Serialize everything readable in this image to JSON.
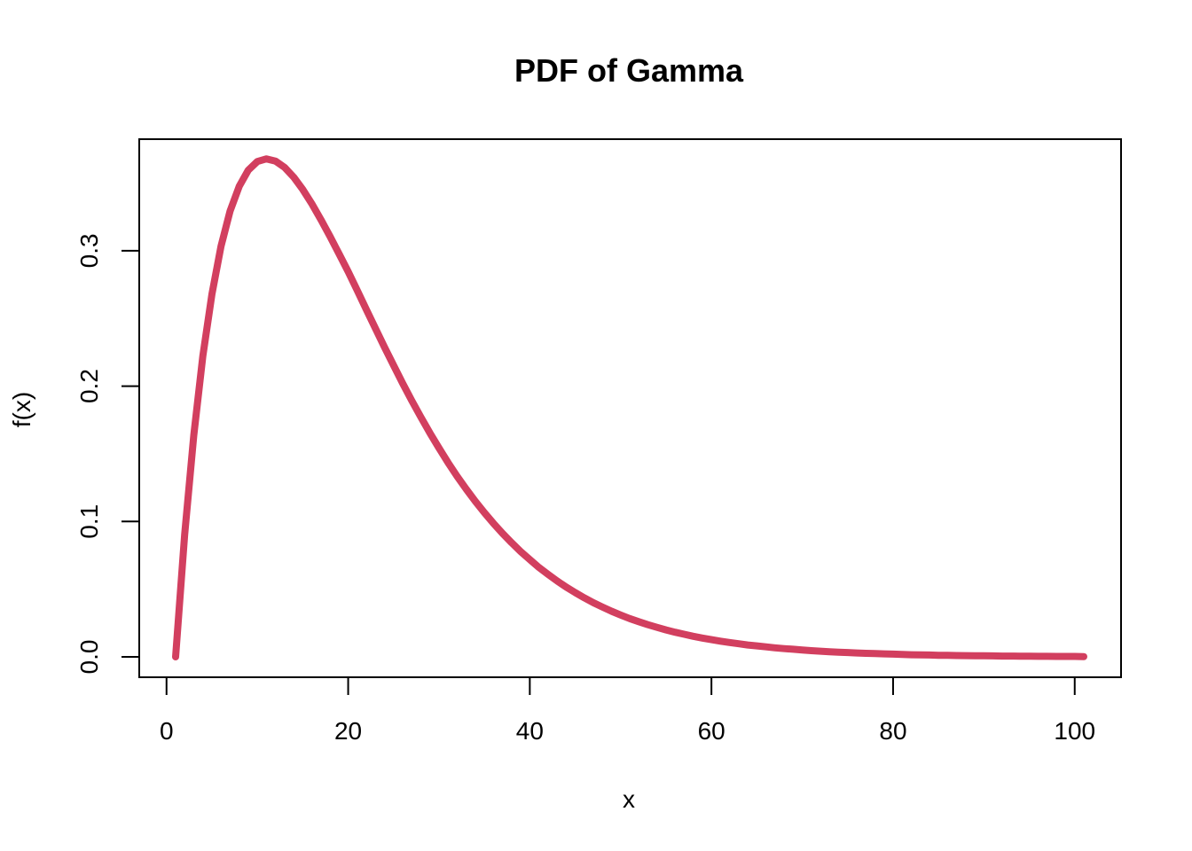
{
  "chart_data": {
    "type": "line",
    "title": "PDF of Gamma",
    "xlabel": "x",
    "ylabel": "f(x)",
    "xlim": [
      1,
      101
    ],
    "ylim": [
      0,
      0.368
    ],
    "x_ticks": [
      0,
      20,
      40,
      60,
      80,
      100
    ],
    "x_tick_labels": [
      "0",
      "20",
      "40",
      "60",
      "80",
      "100"
    ],
    "y_ticks": [
      0.0,
      0.1,
      0.2,
      0.3
    ],
    "y_tick_labels": [
      "0.0",
      "0.1",
      "0.2",
      "0.3"
    ],
    "grid": false,
    "legend": "none",
    "series": [
      {
        "color": "#d23f5f",
        "x": [
          1,
          2,
          3,
          4,
          5,
          6,
          7,
          8,
          9,
          10,
          11,
          12,
          13,
          14,
          15,
          16,
          17,
          18,
          19,
          20,
          21,
          22,
          23,
          24,
          25,
          26,
          27,
          28,
          29,
          30,
          31,
          32,
          33,
          34,
          35,
          36,
          37,
          38,
          39,
          40,
          41,
          42,
          43,
          44,
          45,
          46,
          47,
          48,
          49,
          50,
          51,
          52,
          53,
          54,
          55,
          56,
          57,
          58,
          59,
          60,
          61,
          62,
          63,
          64,
          65,
          66,
          67,
          68,
          69,
          70,
          71,
          72,
          73,
          74,
          75,
          76,
          77,
          78,
          79,
          80,
          81,
          82,
          83,
          84,
          85,
          86,
          87,
          88,
          89,
          90,
          91,
          92,
          93,
          94,
          95,
          96,
          97,
          98,
          99,
          100,
          101
        ],
        "y": [
          0.0,
          0.0902,
          0.1637,
          0.2222,
          0.2681,
          0.3033,
          0.3293,
          0.3476,
          0.3595,
          0.3659,
          0.3679,
          0.3662,
          0.3615,
          0.3544,
          0.3452,
          0.3347,
          0.323,
          0.3106,
          0.2977,
          0.2845,
          0.2707,
          0.2566,
          0.2426,
          0.2288,
          0.2153,
          0.2021,
          0.1894,
          0.1771,
          0.1654,
          0.1542,
          0.1435,
          0.1334,
          0.1239,
          0.1149,
          0.1065,
          0.0986,
          0.0912,
          0.0843,
          0.0778,
          0.0718,
          0.0661,
          0.061,
          0.0561,
          0.0516,
          0.0475,
          0.0436,
          0.04,
          0.0368,
          0.0337,
          0.0309,
          0.0283,
          0.026,
          0.0238,
          0.0218,
          0.0199,
          0.0182,
          0.0167,
          0.0152,
          0.0139,
          0.0127,
          0.0116,
          0.0106,
          0.0097,
          0.0088,
          0.0081,
          0.0074,
          0.0067,
          0.0061,
          0.0056,
          0.0051,
          0.0046,
          0.0042,
          0.0038,
          0.0035,
          0.0032,
          0.0029,
          0.0026,
          0.0024,
          0.0022,
          0.002,
          0.0018,
          0.0016,
          0.0015,
          0.0014,
          0.0012,
          0.0011,
          0.001,
          0.0009,
          0.0008,
          0.0008,
          0.0007,
          0.0006,
          0.0006,
          0.0005,
          0.0005,
          0.0004,
          0.0004,
          0.0003,
          0.0003,
          0.0003,
          0.0002
        ]
      }
    ]
  }
}
